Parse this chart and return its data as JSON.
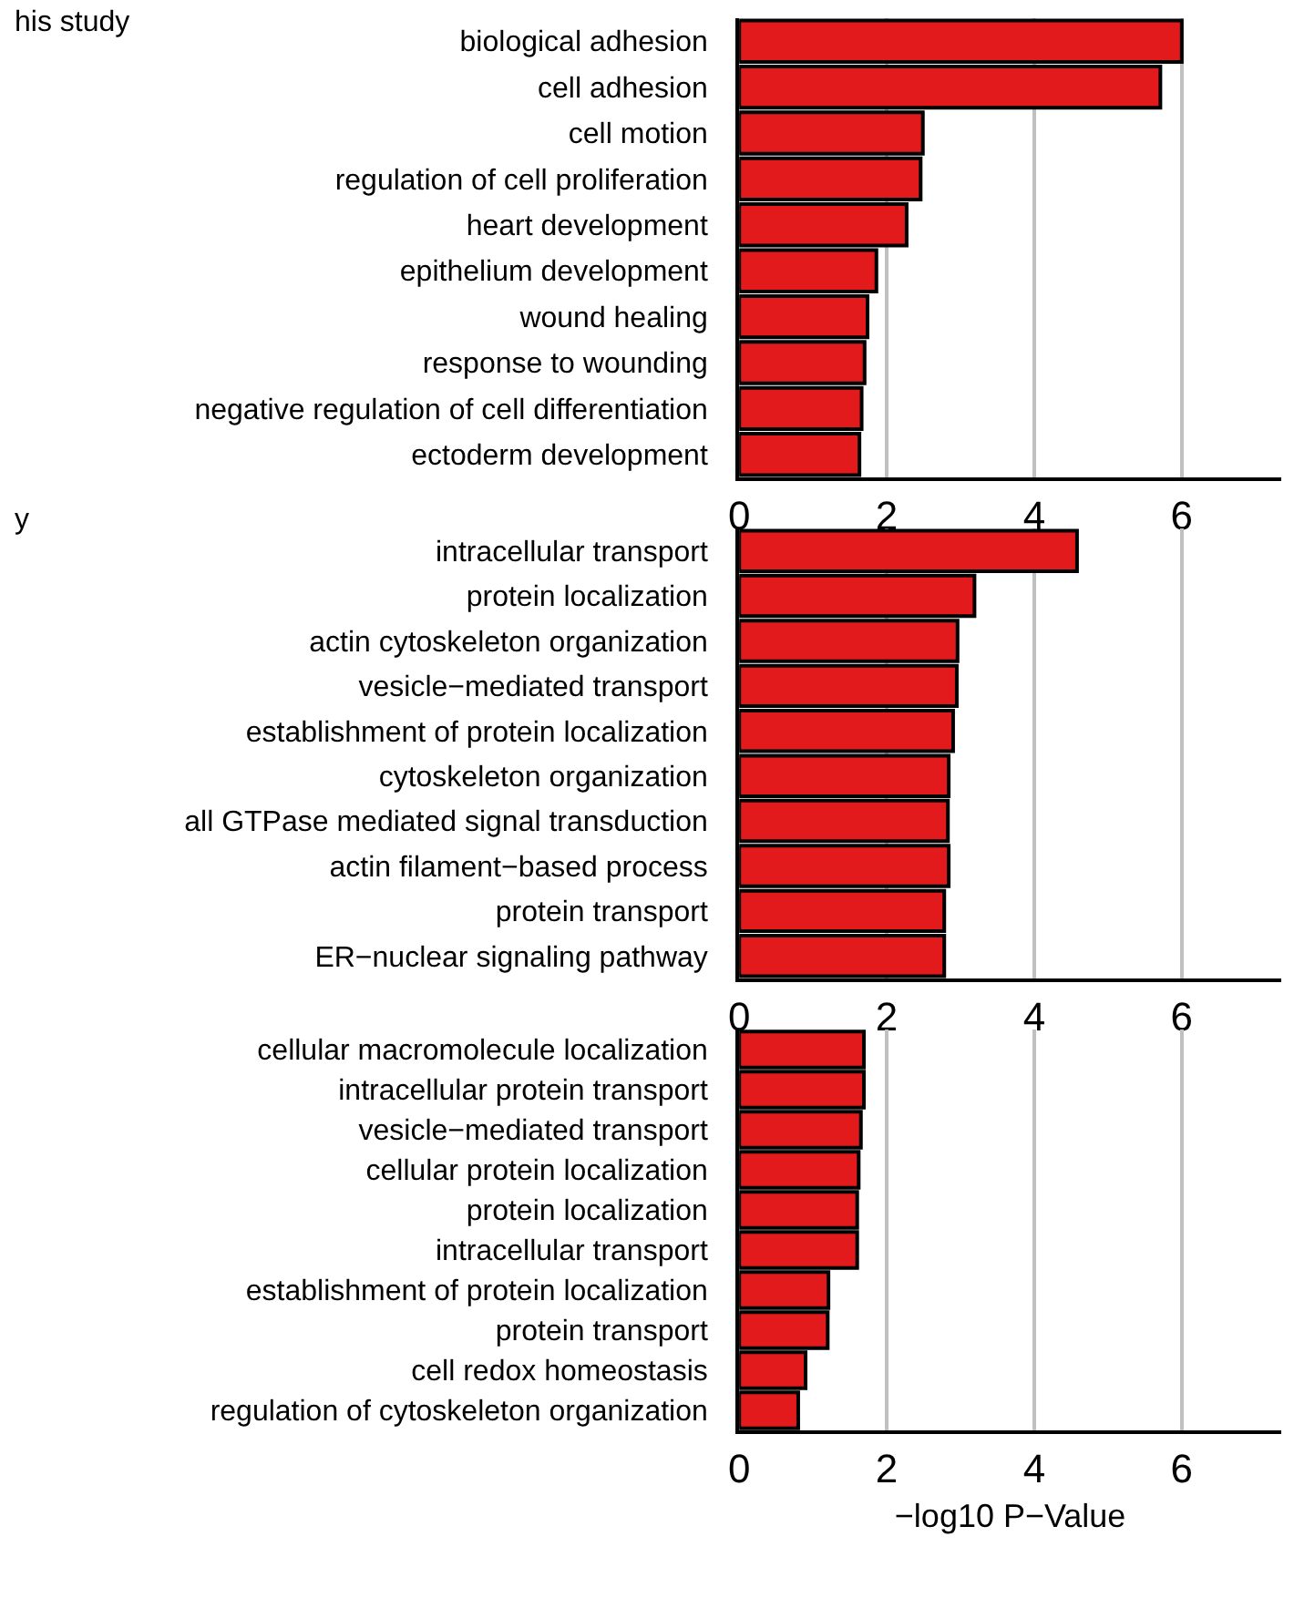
{
  "chart_data": [
    {
      "type": "bar",
      "orientation": "horizontal",
      "title": "his study",
      "categories": [
        "biological adhesion",
        "cell adhesion",
        "cell motion",
        "regulation of cell proliferation",
        "heart development",
        "epithelium development",
        "wound healing",
        "response to wounding",
        "negative regulation of cell differentiation",
        "ectoderm development"
      ],
      "values": [
        6.0,
        5.71,
        2.49,
        2.46,
        2.27,
        1.86,
        1.74,
        1.7,
        1.66,
        1.63
      ],
      "color": "#e31a1c",
      "xlim": [
        0,
        7.35
      ],
      "xticks": [
        0,
        2,
        4,
        6
      ],
      "grid": "x"
    },
    {
      "type": "bar",
      "orientation": "horizontal",
      "title": "y",
      "categories": [
        "intracellular transport",
        "protein localization",
        "actin cytoskeleton organization",
        "vesicle−mediated transport",
        "establishment of protein localization",
        "cytoskeleton organization",
        "all GTPase mediated signal transduction",
        "actin filament−based process",
        "protein transport",
        "ER−nuclear signaling pathway"
      ],
      "values": [
        4.58,
        3.19,
        2.96,
        2.95,
        2.9,
        2.84,
        2.83,
        2.84,
        2.78,
        2.78
      ],
      "color": "#e31a1c",
      "xlim": [
        0,
        7.35
      ],
      "xticks": [
        0,
        2,
        4,
        6
      ],
      "grid": "x"
    },
    {
      "type": "bar",
      "orientation": "horizontal",
      "xlabel": "−log10 P−Value",
      "categories": [
        "cellular macromolecule localization",
        "intracellular protein transport",
        "vesicle−mediated transport",
        "cellular protein localization",
        "protein localization",
        "intracellular transport",
        "establishment of protein localization",
        "protein transport",
        "cell redox homeostasis",
        "regulation of cytoskeleton organization"
      ],
      "values": [
        1.69,
        1.69,
        1.65,
        1.62,
        1.6,
        1.6,
        1.21,
        1.2,
        0.9,
        0.8
      ],
      "color": "#e31a1c",
      "xlim": [
        0,
        7.35
      ],
      "xticks": [
        0,
        2,
        4,
        6
      ],
      "grid": "x"
    }
  ]
}
